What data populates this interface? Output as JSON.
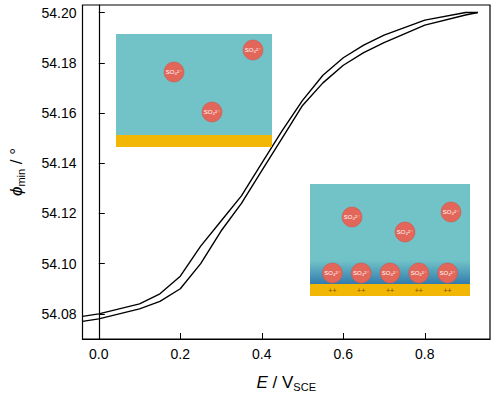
{
  "chart_data": {
    "type": "line",
    "xlabel": [
      {
        "text": "E",
        "style": "italic"
      },
      {
        "text": " / V",
        "style": "normal"
      },
      {
        "text": "SCE",
        "style": "sub"
      }
    ],
    "ylabel": [
      {
        "text": "ϕ",
        "style": "italic"
      },
      {
        "text": "min",
        "style": "sub"
      },
      {
        "text": " / °",
        "style": "normal"
      }
    ],
    "x": [
      -0.04,
      0.0,
      0.1,
      0.15,
      0.2,
      0.25,
      0.3,
      0.35,
      0.4,
      0.45,
      0.5,
      0.55,
      0.6,
      0.65,
      0.7,
      0.8,
      0.9,
      0.93
    ],
    "series": [
      {
        "color": "#000000",
        "values": [
          54.077,
          54.078,
          54.082,
          54.085,
          54.09,
          54.1,
          54.113,
          54.124,
          54.137,
          54.15,
          54.163,
          54.172,
          54.179,
          54.184,
          54.188,
          54.195,
          54.199,
          54.2
        ]
      },
      {
        "color": "#000000",
        "values": [
          54.079,
          54.08,
          54.084,
          54.088,
          54.095,
          54.107,
          54.117,
          54.127,
          54.14,
          54.153,
          54.165,
          54.175,
          54.182,
          54.187,
          54.191,
          54.197,
          54.2,
          54.2
        ]
      }
    ],
    "xlim": [
      -0.04,
      0.96
    ],
    "xticks": [
      {
        "value": 0,
        "label": "0.0"
      },
      0.2,
      0.4,
      0.6,
      0.8
    ],
    "ylim": [
      54.07,
      54.203
    ],
    "yticks": [
      54.08,
      {
        "value": 54.1,
        "label": "54.10"
      },
      54.12,
      54.14,
      54.16,
      54.18,
      {
        "value": 54.2,
        "label": "54.20"
      }
    ],
    "grid": false,
    "insets": [
      {
        "ion_label": "SO₄²⁻",
        "free_ions": 3,
        "adsorbed_ions": 0
      },
      {
        "ion_label": "SO₄²⁻",
        "free_ions": 3,
        "adsorbed_ions": 5,
        "charge_label": "++",
        "charge_marks": 5
      }
    ]
  }
}
